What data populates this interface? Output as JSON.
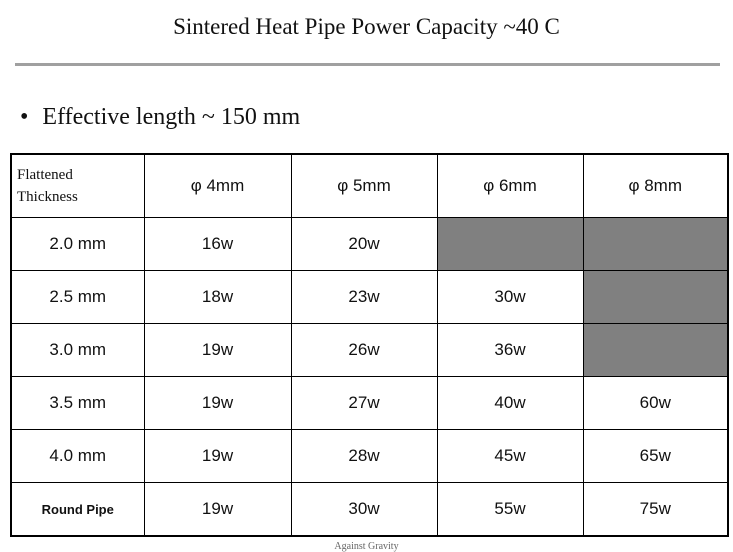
{
  "title": "Sintered Heat Pipe Power Capacity ~40 C",
  "bullet": "Effective length ~ 150 mm",
  "table": {
    "header": [
      "Flattened Thickness",
      "φ 4mm",
      "φ 5mm",
      "φ 6mm",
      "φ 8mm"
    ],
    "rows": [
      [
        "2.0 mm",
        "16w",
        "20w",
        null,
        null
      ],
      [
        "2.5 mm",
        "18w",
        "23w",
        "30w",
        null
      ],
      [
        "3.0 mm",
        "19w",
        "26w",
        "36w",
        null
      ],
      [
        "3.5 mm",
        "19w",
        "27w",
        "40w",
        "60w"
      ],
      [
        "4.0 mm",
        "19w",
        "28w",
        "45w",
        "65w"
      ],
      [
        "Round Pipe",
        "19w",
        "30w",
        "55w",
        "75w"
      ]
    ]
  },
  "footnote": "Against Gravity"
}
